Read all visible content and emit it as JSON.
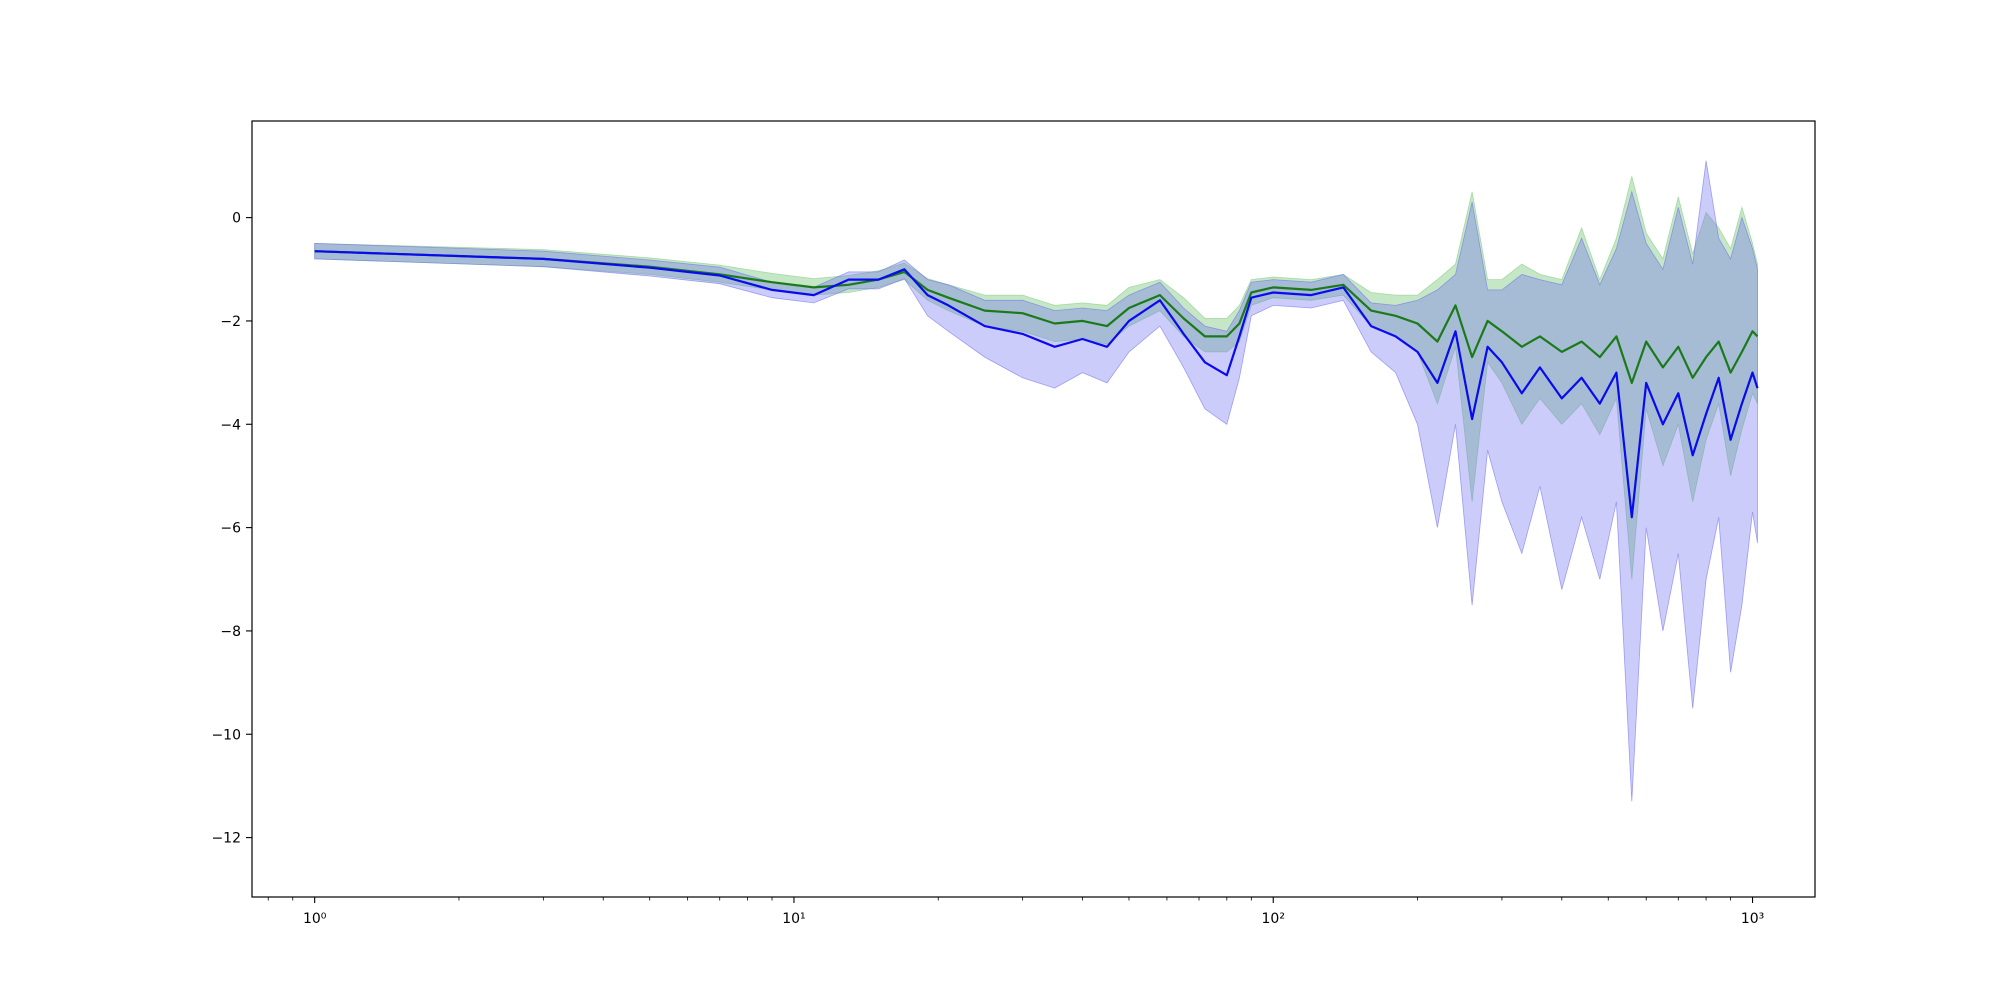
{
  "chart_data": {
    "type": "line",
    "xscale": "log",
    "xlim": [
      0.74,
      1350
    ],
    "ylim": [
      -13.15,
      1.87
    ],
    "grid": false,
    "legend": "none",
    "title": "",
    "xlabel": "",
    "ylabel": "",
    "x_ticks": [
      {
        "value": 1,
        "label": "10⁰"
      },
      {
        "value": 10,
        "label": "10¹"
      },
      {
        "value": 100,
        "label": "10²"
      },
      {
        "value": 1000,
        "label": "10³"
      }
    ],
    "y_ticks": [
      {
        "value": 0,
        "label": "0"
      },
      {
        "value": -2,
        "label": "−2"
      },
      {
        "value": -4,
        "label": "−4"
      },
      {
        "value": -6,
        "label": "−6"
      },
      {
        "value": -8,
        "label": "−8"
      },
      {
        "value": -10,
        "label": "−10"
      },
      {
        "value": -12,
        "label": "−12"
      }
    ],
    "colors": {
      "green_line": "#1a7a1a",
      "green_band": "#7fc97f",
      "blue_line": "#0a0aee",
      "blue_band": "#6d6df0"
    },
    "series": [
      {
        "color": "#1a7a1a",
        "x": [
          1,
          3,
          5,
          7,
          9,
          11,
          13,
          15,
          17,
          19,
          21,
          25,
          30,
          35,
          40,
          45,
          50,
          58,
          65,
          72,
          80,
          85,
          90,
          100,
          120,
          140,
          160,
          180,
          200,
          220,
          240,
          260,
          280,
          300,
          330,
          360,
          400,
          440,
          480,
          520,
          560,
          600,
          650,
          700,
          750,
          800,
          850,
          900,
          950,
          1000,
          1024
        ],
        "y": [
          -0.65,
          -0.8,
          -0.95,
          -1.1,
          -1.25,
          -1.35,
          -1.3,
          -1.2,
          -1.05,
          -1.4,
          -1.55,
          -1.8,
          -1.85,
          -2.05,
          -2.0,
          -2.1,
          -1.75,
          -1.5,
          -1.95,
          -2.3,
          -2.3,
          -2.05,
          -1.45,
          -1.35,
          -1.4,
          -1.3,
          -1.8,
          -1.9,
          -2.05,
          -2.4,
          -1.7,
          -2.7,
          -2.0,
          -2.2,
          -2.5,
          -2.3,
          -2.6,
          -2.4,
          -2.7,
          -2.3,
          -3.2,
          -2.4,
          -2.9,
          -2.5,
          -3.1,
          -2.7,
          -2.4,
          -3.0,
          -2.6,
          -2.2,
          -2.3
        ],
        "y_low": [
          -0.8,
          -0.95,
          -1.1,
          -1.25,
          -1.4,
          -1.5,
          -1.45,
          -1.35,
          -1.2,
          -1.6,
          -1.8,
          -2.1,
          -2.2,
          -2.4,
          -2.35,
          -2.45,
          -2.1,
          -1.8,
          -2.3,
          -2.6,
          -2.6,
          -2.4,
          -1.7,
          -1.55,
          -1.6,
          -1.5,
          -2.1,
          -2.3,
          -2.6,
          -3.6,
          -2.5,
          -5.5,
          -2.8,
          -3.2,
          -4.0,
          -3.5,
          -4.0,
          -3.6,
          -4.2,
          -3.5,
          -7.0,
          -3.7,
          -4.8,
          -4.0,
          -5.5,
          -4.3,
          -3.6,
          -5.0,
          -4.1,
          -3.4,
          -3.6
        ],
        "y_high": [
          -0.5,
          -0.62,
          -0.78,
          -0.92,
          -1.08,
          -1.18,
          -1.12,
          -1.03,
          -0.88,
          -1.18,
          -1.3,
          -1.5,
          -1.5,
          -1.7,
          -1.65,
          -1.7,
          -1.35,
          -1.2,
          -1.55,
          -1.95,
          -1.95,
          -1.7,
          -1.2,
          -1.15,
          -1.2,
          -1.1,
          -1.45,
          -1.5,
          -1.5,
          -1.2,
          -0.9,
          0.5,
          -1.2,
          -1.2,
          -0.9,
          -1.1,
          -1.2,
          -0.2,
          -1.2,
          -0.4,
          0.8,
          -0.3,
          -0.8,
          0.4,
          -0.7,
          0.1,
          -0.2,
          -0.6,
          0.2,
          -0.5,
          -0.9
        ]
      },
      {
        "color": "#0a0aee",
        "x": [
          1,
          3,
          5,
          7,
          9,
          11,
          13,
          15,
          17,
          19,
          21,
          25,
          30,
          35,
          40,
          45,
          50,
          58,
          65,
          72,
          80,
          85,
          90,
          100,
          120,
          140,
          160,
          180,
          200,
          220,
          240,
          260,
          280,
          300,
          330,
          360,
          400,
          440,
          480,
          520,
          560,
          600,
          650,
          700,
          750,
          800,
          850,
          900,
          950,
          1000,
          1024
        ],
        "y": [
          -0.65,
          -0.8,
          -0.97,
          -1.12,
          -1.4,
          -1.5,
          -1.2,
          -1.2,
          -1.0,
          -1.5,
          -1.7,
          -2.1,
          -2.25,
          -2.5,
          -2.35,
          -2.5,
          -2.0,
          -1.6,
          -2.25,
          -2.8,
          -3.05,
          -2.3,
          -1.55,
          -1.45,
          -1.5,
          -1.35,
          -2.1,
          -2.3,
          -2.6,
          -3.2,
          -2.2,
          -3.9,
          -2.5,
          -2.8,
          -3.4,
          -2.9,
          -3.5,
          -3.1,
          -3.6,
          -3.0,
          -5.8,
          -3.2,
          -4.0,
          -3.4,
          -4.6,
          -3.8,
          -3.1,
          -4.3,
          -3.6,
          -3.0,
          -3.3
        ],
        "y_low": [
          -0.8,
          -0.95,
          -1.13,
          -1.28,
          -1.55,
          -1.65,
          -1.38,
          -1.38,
          -1.18,
          -1.9,
          -2.2,
          -2.7,
          -3.1,
          -3.3,
          -3.0,
          -3.2,
          -2.6,
          -2.1,
          -2.9,
          -3.7,
          -4.0,
          -3.1,
          -1.9,
          -1.7,
          -1.75,
          -1.6,
          -2.6,
          -3.0,
          -4.0,
          -6.0,
          -4.0,
          -7.5,
          -4.5,
          -5.5,
          -6.5,
          -5.2,
          -7.2,
          -5.8,
          -7.0,
          -5.5,
          -11.3,
          -6.0,
          -8.0,
          -6.5,
          -9.5,
          -7.0,
          -5.8,
          -8.8,
          -7.5,
          -5.7,
          -6.3
        ],
        "y_high": [
          -0.5,
          -0.65,
          -0.82,
          -0.96,
          -1.25,
          -1.35,
          -1.05,
          -1.05,
          -0.82,
          -1.2,
          -1.3,
          -1.6,
          -1.6,
          -1.8,
          -1.75,
          -1.8,
          -1.5,
          -1.25,
          -1.75,
          -2.1,
          -2.2,
          -1.8,
          -1.25,
          -1.2,
          -1.25,
          -1.1,
          -1.65,
          -1.7,
          -1.6,
          -1.4,
          -1.1,
          0.3,
          -1.4,
          -1.4,
          -1.1,
          -1.2,
          -1.3,
          -0.4,
          -1.3,
          -0.6,
          0.5,
          -0.5,
          -1.0,
          0.2,
          -0.9,
          1.1,
          -0.4,
          -0.8,
          0.0,
          -0.6,
          -1.0
        ]
      }
    ]
  }
}
